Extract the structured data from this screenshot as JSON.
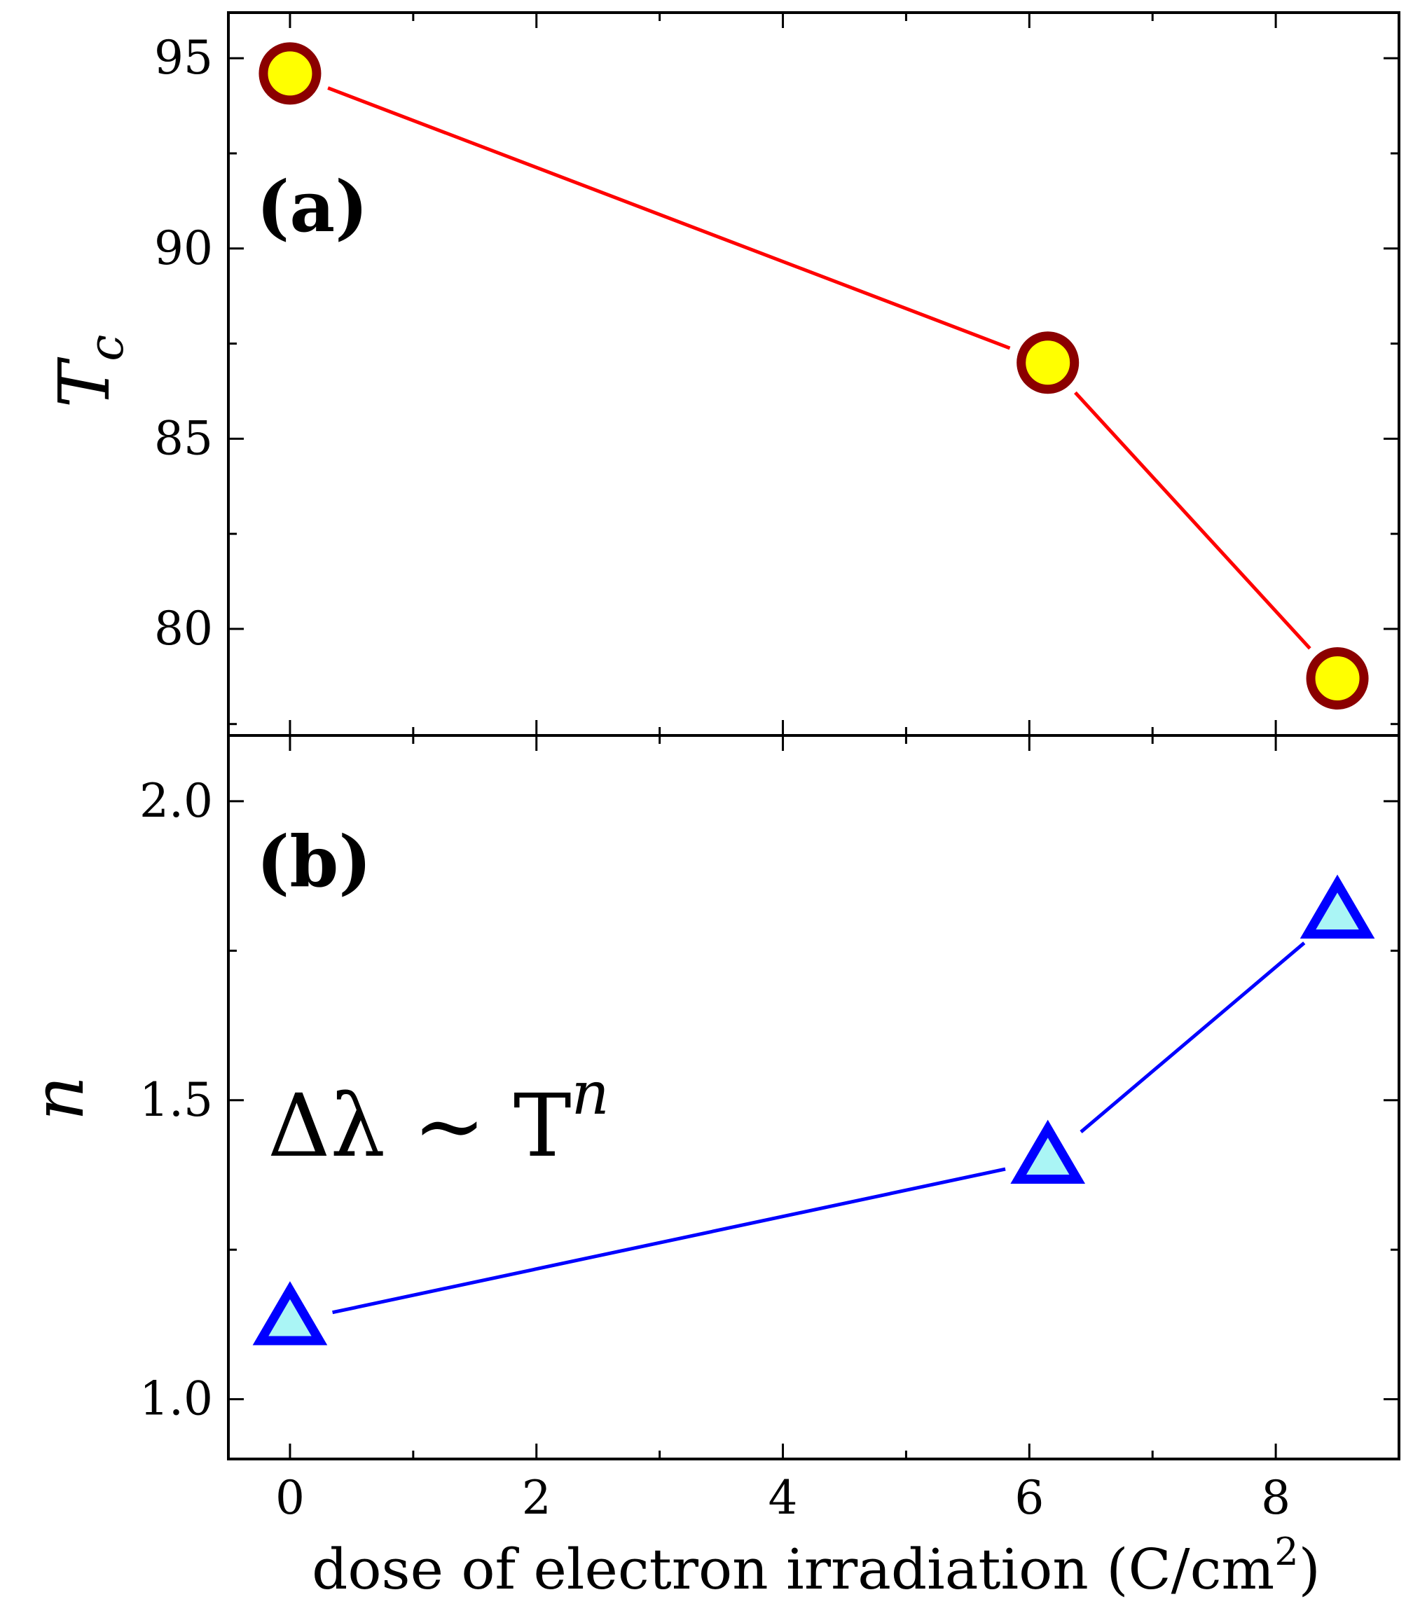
{
  "chart_data": [
    {
      "type": "line",
      "panel_label": "(a)",
      "ylabel_main": "T",
      "ylabel_sub": "c",
      "xlim": [
        -0.5,
        9.0
      ],
      "ylim": [
        77.2,
        96.2
      ],
      "yticks_major": [
        80,
        85,
        90,
        95
      ],
      "ytick_labels": [
        "80",
        "85",
        "90",
        "95"
      ],
      "series": [
        {
          "x": [
            0,
            6.15,
            8.5
          ],
          "y": [
            94.6,
            87.0,
            78.7
          ],
          "marker": "circle",
          "line_color": "#ff0000",
          "marker_fill": "#ffff00",
          "marker_edge": "#8b0000"
        }
      ]
    },
    {
      "type": "line",
      "panel_label": "(b)",
      "ylabel": "n",
      "annotation": "Δλ ∼ T",
      "annotation_sup": "n",
      "xlabel": "dose of electron irradiation (C/cm",
      "xlabel_sup": "2",
      "xlabel_end": ")",
      "xlim": [
        -0.5,
        9.0
      ],
      "ylim": [
        0.9,
        2.11
      ],
      "xticks_major": [
        0,
        2,
        4,
        6,
        8
      ],
      "xtick_labels": [
        "0",
        "2",
        "4",
        "6",
        "8"
      ],
      "yticks_major": [
        1.0,
        1.5,
        2.0
      ],
      "ytick_labels": [
        "1.0",
        "1.5",
        "2.0"
      ],
      "series": [
        {
          "x": [
            0,
            6.15,
            8.5
          ],
          "y": [
            1.13,
            1.4,
            1.81
          ],
          "marker": "triangle",
          "line_color": "#0000ff",
          "marker_fill": "#aaf5f5",
          "marker_edge": "#0000ff"
        }
      ]
    }
  ]
}
